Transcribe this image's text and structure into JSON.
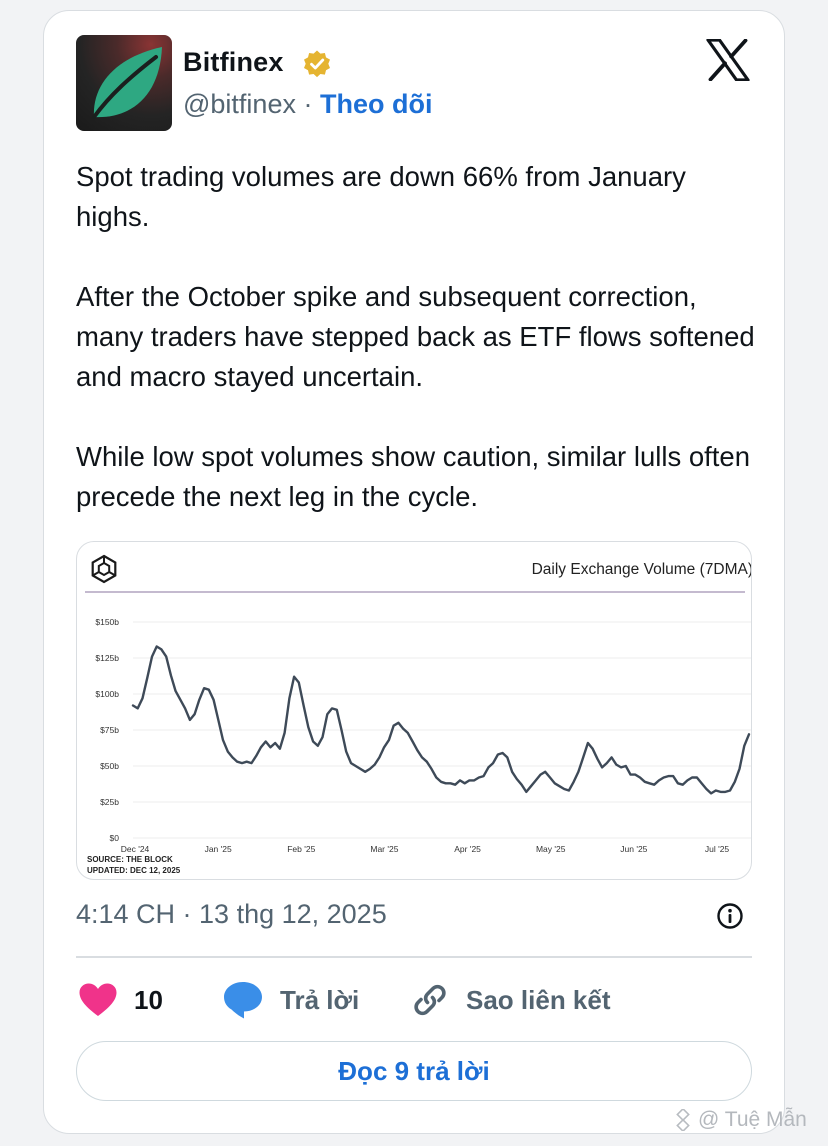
{
  "author": {
    "name": "Bitfinex",
    "handle": "@bitfinex",
    "separator": "·",
    "follow_label": "Theo dõi",
    "verified_icon": "verified-badge-icon",
    "platform_icon": "x-logo-icon"
  },
  "tweet": {
    "paragraphs": [
      "Spot trading volumes are down 66% from January highs.",
      "After the October spike and subsequent correction, many traders have stepped back as ETF flows softened and macro stayed uncertain.",
      "While low spot volumes show caution, similar lulls often precede the next leg in the cycle."
    ]
  },
  "chart_data": {
    "type": "line",
    "title": "Daily Exchange Volume (7DMA)",
    "xlabel": "",
    "ylabel": "",
    "y_ticks": [
      "$0",
      "$25b",
      "$50b",
      "$75b",
      "$100b",
      "$125b",
      "$150b"
    ],
    "x_ticks": [
      "Dec '24",
      "Jan '25",
      "Feb '25",
      "Mar '25",
      "Apr '25",
      "May '25",
      "Jun '25",
      "Jul '25"
    ],
    "ylim": [
      0,
      150
    ],
    "grid": "horizontal",
    "source": "SOURCE: THE BLOCK",
    "updated": "UPDATED: DEC 12, 2025",
    "series": [
      {
        "values": [
          92,
          90,
          97,
          111,
          126,
          133,
          131,
          126,
          113,
          102,
          96,
          90,
          82,
          86,
          96,
          104,
          103,
          96,
          82,
          68,
          60,
          56,
          53,
          52,
          53,
          52,
          57,
          63,
          67,
          63,
          66,
          62,
          73,
          97,
          112,
          108,
          92,
          77,
          67,
          64,
          70,
          86,
          90,
          89,
          75,
          60,
          52,
          50,
          48,
          46,
          48,
          51,
          56,
          63,
          68,
          78,
          80,
          76,
          73,
          67,
          61,
          56,
          53,
          48,
          42,
          39,
          38,
          38,
          37,
          40,
          38,
          40,
          40,
          42,
          43,
          49,
          52,
          58,
          59,
          56,
          46,
          41,
          37,
          32,
          36,
          40,
          44,
          46,
          42,
          38,
          36,
          34,
          33,
          39,
          46,
          56,
          66,
          62,
          55,
          49,
          52,
          56,
          51,
          49,
          50,
          44,
          44,
          42,
          39,
          38,
          37,
          40,
          42,
          43,
          43,
          38,
          37,
          40,
          42,
          42,
          38,
          34,
          31,
          33,
          32,
          32,
          33,
          39,
          48,
          64,
          72
        ]
      }
    ]
  },
  "timestamp": "4:14 CH · 13 thg 12, 2025",
  "actions": {
    "like_count": "10",
    "reply_label": "Trả lời",
    "copy_link_label": "Sao liên kết"
  },
  "read_replies_label": "Đọc 9 trả lời",
  "watermark": "@ Tuệ Mẫn"
}
